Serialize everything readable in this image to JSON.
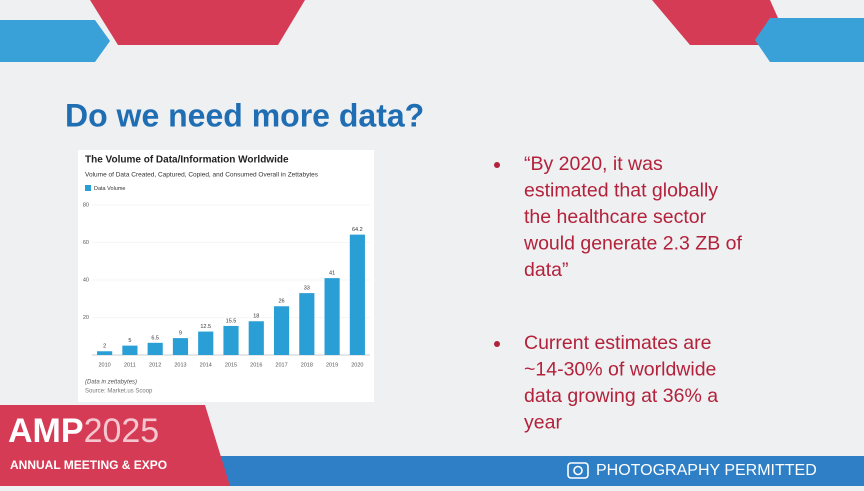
{
  "slide": {
    "title": "Do we need more data?",
    "bullets": [
      [
        "“By 2020, it was",
        "estimated that globally",
        "the healthcare sector",
        "would generate 2.3 ZB of",
        "data”"
      ],
      [
        "Current estimates are",
        "~14-30% of worldwide",
        "data growing at 36% a",
        "year"
      ]
    ],
    "logo": {
      "amp": "AMP",
      "year": "2025",
      "tagline": "ANNUAL MEETING & EXPO"
    },
    "footer": "PHOTOGRAPHY PERMITTED"
  },
  "chart_data": {
    "type": "bar",
    "title": "The Volume of Data/Information Worldwide",
    "subtitle": "Volume of Data Created, Captured, Copied, and Consumed Overall in Zettabytes",
    "categories": [
      "2010",
      "2011",
      "2012",
      "2013",
      "2014",
      "2015",
      "2016",
      "2017",
      "2018",
      "2019",
      "2020"
    ],
    "series": [
      {
        "name": "Data Volume",
        "color": "#2a9fd6",
        "values": [
          2,
          5,
          6.5,
          9,
          12.5,
          15.5,
          18,
          26,
          33,
          41,
          64.2
        ]
      }
    ],
    "ylim": [
      0,
      80
    ],
    "yticks": [
      20,
      40,
      60,
      80
    ],
    "grid": true,
    "notes": [
      "(Data in zettabytes)",
      "Source: Market.us Scoop"
    ]
  }
}
